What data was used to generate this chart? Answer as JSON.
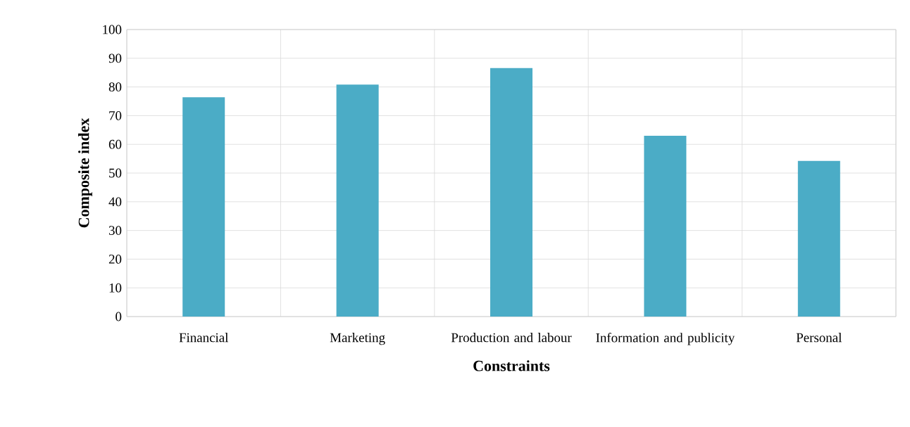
{
  "chart_data": {
    "type": "bar",
    "xlabel": "Constraints",
    "ylabel": "Composite index",
    "categories": [
      "Financial",
      "Marketing",
      "Production and labour",
      "Information and publicity",
      "Personal"
    ],
    "values": [
      76.4,
      80.8,
      86.6,
      63.0,
      54.2
    ],
    "color": "#4bacc6",
    "ylim": [
      0,
      100
    ],
    "yticks": [
      0,
      10,
      20,
      30,
      40,
      50,
      60,
      70,
      80,
      90,
      100
    ],
    "grid": true
  }
}
